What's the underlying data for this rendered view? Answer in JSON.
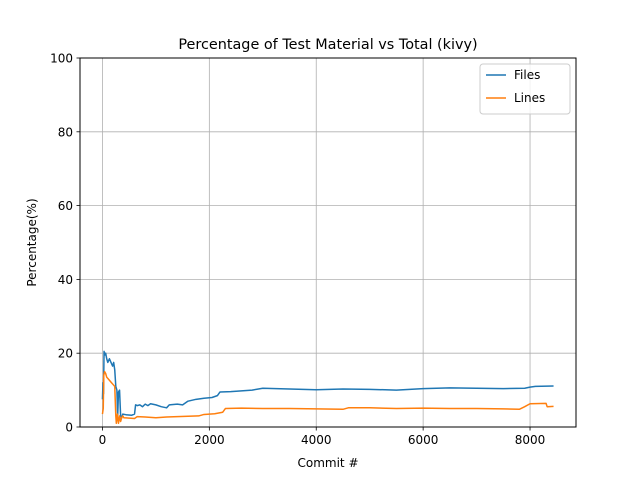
{
  "chart_data": {
    "type": "line",
    "title": "Percentage of Test Material vs Total (kivy)",
    "xlabel": "Commit #",
    "ylabel": "Percentage(%)",
    "xlim": [
      -420,
      8860
    ],
    "ylim": [
      0,
      100
    ],
    "xticks": [
      0,
      2000,
      4000,
      6000,
      8000
    ],
    "yticks": [
      0,
      20,
      40,
      60,
      80,
      100
    ],
    "grid": true,
    "legend_position": "top-right",
    "series": [
      {
        "name": "Files",
        "color": "#1f77b4",
        "points": [
          [
            0,
            7.5
          ],
          [
            10,
            12
          ],
          [
            20,
            9
          ],
          [
            30,
            20.5
          ],
          [
            45,
            19.5
          ],
          [
            60,
            20
          ],
          [
            80,
            18.5
          ],
          [
            100,
            17.5
          ],
          [
            130,
            18.5
          ],
          [
            160,
            17.5
          ],
          [
            190,
            16.5
          ],
          [
            210,
            17.5
          ],
          [
            230,
            15.5
          ],
          [
            250,
            11
          ],
          [
            270,
            10
          ],
          [
            285,
            3
          ],
          [
            300,
            9.5
          ],
          [
            320,
            10
          ],
          [
            340,
            3
          ],
          [
            360,
            2.5
          ],
          [
            380,
            3.5
          ],
          [
            450,
            3.3
          ],
          [
            550,
            3.2
          ],
          [
            600,
            3.5
          ],
          [
            620,
            6
          ],
          [
            650,
            5.8
          ],
          [
            700,
            6
          ],
          [
            750,
            5.5
          ],
          [
            800,
            6.2
          ],
          [
            850,
            5.8
          ],
          [
            900,
            6.3
          ],
          [
            1000,
            6
          ],
          [
            1100,
            5.5
          ],
          [
            1200,
            5.2
          ],
          [
            1250,
            6
          ],
          [
            1400,
            6.2
          ],
          [
            1500,
            6
          ],
          [
            1600,
            7
          ],
          [
            1750,
            7.5
          ],
          [
            1900,
            7.8
          ],
          [
            2050,
            8
          ],
          [
            2150,
            8.5
          ],
          [
            2200,
            9.5
          ],
          [
            2400,
            9.6
          ],
          [
            2600,
            9.8
          ],
          [
            2800,
            10
          ],
          [
            3000,
            10.5
          ],
          [
            3500,
            10.3
          ],
          [
            4000,
            10.1
          ],
          [
            4500,
            10.3
          ],
          [
            5000,
            10.2
          ],
          [
            5500,
            10
          ],
          [
            6000,
            10.4
          ],
          [
            6500,
            10.6
          ],
          [
            7000,
            10.5
          ],
          [
            7500,
            10.4
          ],
          [
            7900,
            10.5
          ],
          [
            8000,
            10.8
          ],
          [
            8100,
            11
          ],
          [
            8440,
            11.1
          ]
        ]
      },
      {
        "name": "Lines",
        "color": "#ff7f0e",
        "points": [
          [
            0,
            3.5
          ],
          [
            15,
            5
          ],
          [
            25,
            14
          ],
          [
            40,
            15
          ],
          [
            60,
            14.5
          ],
          [
            80,
            13.5
          ],
          [
            110,
            13
          ],
          [
            140,
            12.5
          ],
          [
            170,
            12
          ],
          [
            200,
            11.5
          ],
          [
            230,
            11
          ],
          [
            250,
            3
          ],
          [
            260,
            1
          ],
          [
            280,
            3.5
          ],
          [
            300,
            1
          ],
          [
            320,
            3
          ],
          [
            340,
            1.5
          ],
          [
            360,
            2.5
          ],
          [
            380,
            3
          ],
          [
            400,
            2.5
          ],
          [
            500,
            2.4
          ],
          [
            600,
            2.3
          ],
          [
            650,
            2.8
          ],
          [
            800,
            2.7
          ],
          [
            900,
            2.6
          ],
          [
            1000,
            2.5
          ],
          [
            1100,
            2.6
          ],
          [
            1200,
            2.7
          ],
          [
            1400,
            2.8
          ],
          [
            1600,
            2.9
          ],
          [
            1800,
            3
          ],
          [
            1900,
            3.4
          ],
          [
            2100,
            3.6
          ],
          [
            2250,
            4
          ],
          [
            2300,
            5
          ],
          [
            2600,
            5.1
          ],
          [
            3000,
            5
          ],
          [
            3500,
            5
          ],
          [
            4000,
            4.9
          ],
          [
            4500,
            4.8
          ],
          [
            4600,
            5.2
          ],
          [
            5000,
            5.2
          ],
          [
            5500,
            5
          ],
          [
            6000,
            5.1
          ],
          [
            6500,
            5
          ],
          [
            7000,
            5
          ],
          [
            7500,
            4.9
          ],
          [
            7800,
            4.8
          ],
          [
            7900,
            5.5
          ],
          [
            8000,
            6.3
          ],
          [
            8300,
            6.4
          ],
          [
            8320,
            5.5
          ],
          [
            8440,
            5.6
          ]
        ]
      }
    ]
  }
}
